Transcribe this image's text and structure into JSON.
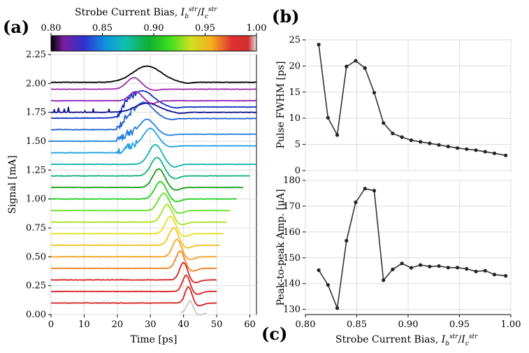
{
  "panel_labels": {
    "a": "(a)",
    "b": "(b)",
    "c": "(c)"
  },
  "colorbar": {
    "label": "Strobe Current Bias,",
    "label_math": "I_b^str / I_c^str",
    "range": [
      0.8,
      1.0
    ],
    "ticks": [
      "0.80",
      "0.85",
      "0.90",
      "0.95",
      "1.00"
    ]
  },
  "chart_data": [
    {
      "panel": "a",
      "type": "line",
      "xlabel": "Time [ps]",
      "ylabel": "Signal [mA]",
      "xlim": [
        0,
        62
      ],
      "ylim": [
        0,
        2.25
      ],
      "xticks": [
        "0",
        "10",
        "20",
        "30",
        "40",
        "50",
        "60"
      ],
      "yticks": [
        "0.00",
        "0.25",
        "0.50",
        "0.75",
        "1.00",
        "1.25",
        "1.50",
        "1.75",
        "2.00",
        "2.25"
      ],
      "grid": true,
      "description_note": "Waveforms vertically offset by bias; colored by strobe current bias",
      "series": [
        {
          "bias": 0.995,
          "color": "#c8c8c8",
          "baseline": 0.02,
          "peak_t": 42.0,
          "peak_amp": 0.1,
          "width": 1.3,
          "end_t": 47,
          "start_t": 39
        },
        {
          "bias": 0.985,
          "color": "#d62020",
          "baseline": 0.1,
          "peak_t": 41.5,
          "peak_amp": 0.14,
          "width": 1.5,
          "end_t": 50
        },
        {
          "bias": 0.975,
          "color": "#d62020",
          "baseline": 0.2,
          "peak_t": 40.8,
          "peak_amp": 0.14,
          "width": 1.6,
          "end_t": 50
        },
        {
          "bias": 0.965,
          "color": "#d62020",
          "baseline": 0.3,
          "peak_t": 40.0,
          "peak_amp": 0.15,
          "width": 1.7,
          "end_t": 50
        },
        {
          "bias": 0.955,
          "color": "#f08020",
          "baseline": 0.4,
          "peak_t": 39.0,
          "peak_amp": 0.15,
          "width": 1.8,
          "end_t": 50
        },
        {
          "bias": 0.945,
          "color": "#f5a020",
          "baseline": 0.5,
          "peak_t": 38.0,
          "peak_amp": 0.15,
          "width": 1.9,
          "end_t": 50
        },
        {
          "bias": 0.935,
          "color": "#f5c020",
          "baseline": 0.6,
          "peak_t": 37.0,
          "peak_amp": 0.15,
          "width": 2.0,
          "end_t": 51
        },
        {
          "bias": 0.925,
          "color": "#e8e020",
          "baseline": 0.7,
          "peak_t": 36.0,
          "peak_amp": 0.15,
          "width": 2.1,
          "end_t": 52
        },
        {
          "bias": 0.915,
          "color": "#a8e020",
          "baseline": 0.8,
          "peak_t": 35.0,
          "peak_amp": 0.15,
          "width": 2.2,
          "end_t": 53
        },
        {
          "bias": 0.905,
          "color": "#60e020",
          "baseline": 0.9,
          "peak_t": 34.0,
          "peak_amp": 0.15,
          "width": 2.3,
          "end_t": 54
        },
        {
          "bias": 0.895,
          "color": "#20d020",
          "baseline": 1.0,
          "peak_t": 33.0,
          "peak_amp": 0.15,
          "width": 2.4,
          "end_t": 56
        },
        {
          "bias": 0.885,
          "color": "#10a010",
          "baseline": 1.1,
          "peak_t": 32.5,
          "peak_amp": 0.16,
          "width": 2.5,
          "end_t": 58
        },
        {
          "bias": 0.875,
          "color": "#10b080",
          "baseline": 1.2,
          "peak_t": 32.0,
          "peak_amp": 0.16,
          "width": 2.6,
          "end_t": 60
        },
        {
          "bias": 0.865,
          "color": "#10b0b0",
          "baseline": 1.3,
          "peak_t": 31.5,
          "peak_amp": 0.17,
          "width": 2.8,
          "end_t": 62
        },
        {
          "bias": 0.855,
          "color": "#20a0e0",
          "baseline": 1.4,
          "peak_t": 30.0,
          "peak_amp": 0.15,
          "width": 3.0,
          "end_t": 62,
          "noisy_onset": 20
        },
        {
          "bias": 0.845,
          "color": "#2080e0",
          "baseline": 1.5,
          "peak_t": 29.0,
          "peak_amp": 0.13,
          "width": 3.2,
          "end_t": 62,
          "noisy_onset": 20
        },
        {
          "bias": 0.835,
          "color": "#2060d0",
          "baseline": 1.6,
          "peak_t": 28.0,
          "peak_amp": 0.14,
          "width": 4.0,
          "end_t": 62,
          "noisy_onset": 20
        },
        {
          "bias": 0.825,
          "color": "#1030c0",
          "baseline": 1.7,
          "peak_t": 27.5,
          "peak_amp": 0.14,
          "width": 5.0,
          "end_t": 62,
          "noisy_onset": 20
        },
        {
          "bias": 0.815,
          "color": "#101090",
          "baseline": 1.75,
          "peak_t": 29.0,
          "peak_amp": 0.08,
          "width": 5.0,
          "end_t": 62,
          "spiky": true
        },
        {
          "bias": 0.812,
          "color": "#9020b0",
          "baseline": 1.85,
          "peak_t": 25.5,
          "peak_amp": 0.08,
          "width": 2.5,
          "end_t": 62
        },
        {
          "bias": 0.808,
          "color": "#a030b0",
          "baseline": 1.95,
          "peak_t": 25.0,
          "peak_amp": 0.1,
          "width": 3.0,
          "end_t": 62
        },
        {
          "bias": 0.8,
          "color": "#000000",
          "baseline": 2.01,
          "peak_t": 29.0,
          "peak_amp": 0.14,
          "width": 6.0,
          "end_t": 62
        }
      ]
    },
    {
      "panel": "b",
      "type": "line",
      "xlabel": "",
      "ylabel": "Pulse FWHM [ps]",
      "xlim": [
        0.8,
        1.0
      ],
      "ylim": [
        0,
        25
      ],
      "yticks": [
        "0",
        "5",
        "10",
        "15",
        "20",
        "25"
      ],
      "grid": true,
      "x": [
        0.813,
        0.822,
        0.831,
        0.84,
        0.849,
        0.858,
        0.867,
        0.876,
        0.885,
        0.894,
        0.903,
        0.912,
        0.921,
        0.93,
        0.939,
        0.948,
        0.957,
        0.966,
        0.975,
        0.984,
        0.995
      ],
      "values": [
        24.1,
        10.1,
        6.8,
        19.9,
        21.0,
        19.6,
        14.9,
        9.1,
        7.1,
        6.4,
        5.8,
        5.5,
        5.2,
        4.9,
        4.6,
        4.3,
        4.1,
        3.9,
        3.6,
        3.3,
        2.9
      ]
    },
    {
      "panel": "c",
      "type": "line",
      "xlabel": "Strobe Current Bias,",
      "xlabel_math": "I_b^str / I_c^str",
      "ylabel": "Peak-to-peak Amp. [μA]",
      "xlim": [
        0.8,
        1.0
      ],
      "ylim": [
        128,
        180
      ],
      "xticks": [
        "0.80",
        "0.85",
        "0.90",
        "0.95",
        "1.00"
      ],
      "yticks": [
        "130",
        "140",
        "150",
        "160",
        "170",
        "180"
      ],
      "grid": true,
      "x": [
        0.813,
        0.822,
        0.831,
        0.84,
        0.849,
        0.858,
        0.867,
        0.876,
        0.885,
        0.894,
        0.903,
        0.912,
        0.921,
        0.93,
        0.939,
        0.948,
        0.957,
        0.966,
        0.975,
        0.984,
        0.995
      ],
      "values": [
        145.2,
        139.5,
        130.5,
        156.6,
        171.5,
        176.8,
        176.0,
        141.3,
        145.5,
        147.8,
        146.1,
        147.2,
        146.6,
        146.8,
        146.2,
        146.2,
        145.7,
        144.7,
        145.0,
        143.5,
        143.0
      ]
    }
  ]
}
